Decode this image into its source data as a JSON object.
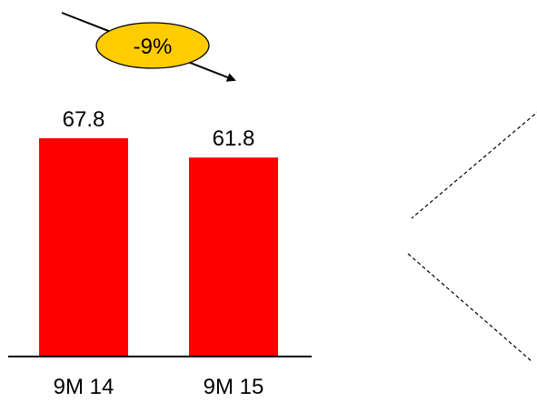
{
  "chart_data": {
    "type": "bar",
    "categories": [
      "9M 14",
      "9M 15"
    ],
    "values": [
      67.8,
      61.8
    ],
    "value_labels": [
      "67.8",
      "61.8"
    ],
    "title": "",
    "xlabel": "",
    "ylabel": "",
    "ylim": [
      0,
      67.8
    ],
    "grid": false,
    "bar_color": "#ff0000",
    "change_badge": {
      "text": "-9%",
      "fill": "#ffcc00",
      "stroke": "#000000",
      "arrow": "arrow-down-right-icon"
    },
    "decoration": "dashed-chevron"
  }
}
